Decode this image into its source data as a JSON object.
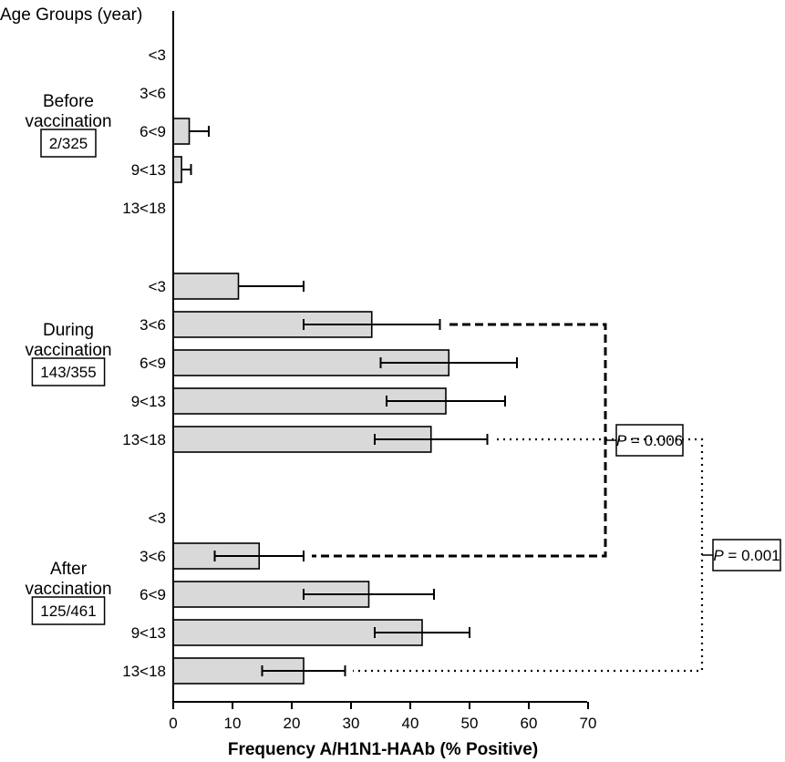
{
  "chart_data": {
    "type": "bar",
    "orientation": "horizontal",
    "xlabel": "Frequency A/H1N1-HAAb (% Positive)",
    "ylabel": "Age Groups (year)",
    "xlim": [
      0,
      70
    ],
    "xticks": [
      0,
      10,
      20,
      30,
      40,
      50,
      60,
      70
    ],
    "grid": false,
    "bar_color": "#d9d9d9",
    "groups": [
      {
        "label": [
          "Before",
          "vaccination"
        ],
        "count": "2/325",
        "categories": [
          "<3",
          "3<6",
          "6<9",
          "9<13",
          "13<18"
        ],
        "values": [
          0,
          0,
          2.7,
          1.4,
          0
        ],
        "error_upper": [
          null,
          null,
          6,
          3,
          null
        ],
        "error_lower": [
          null,
          null,
          null,
          null,
          null
        ]
      },
      {
        "label": [
          "During",
          "vaccination"
        ],
        "count": "143/355",
        "categories": [
          "<3",
          "3<6",
          "6<9",
          "9<13",
          "13<18"
        ],
        "values": [
          11,
          33.5,
          46.5,
          46,
          43.5
        ],
        "error_upper": [
          22,
          45,
          58,
          56,
          53
        ],
        "error_lower": [
          null,
          22,
          35,
          36,
          34
        ]
      },
      {
        "label": [
          "After",
          "vaccination"
        ],
        "count": "125/461",
        "categories": [
          "<3",
          "3<6",
          "6<9",
          "9<13",
          "13<18"
        ],
        "values": [
          0,
          14.5,
          33,
          42,
          22
        ],
        "error_upper": [
          null,
          22,
          44,
          50,
          29
        ],
        "error_lower": [
          null,
          7,
          22,
          34,
          15
        ]
      }
    ],
    "annotations": [
      {
        "from": "During vaccination 3<6",
        "to": "After vaccination 3<6",
        "label_prefix": "P",
        "label_value": " = 0.006",
        "style": "dashed"
      },
      {
        "from": "During vaccination 13<18",
        "to": "After vaccination 13<18",
        "label_prefix": "P",
        "label_value": " = 0.001",
        "style": "dotted"
      }
    ]
  }
}
